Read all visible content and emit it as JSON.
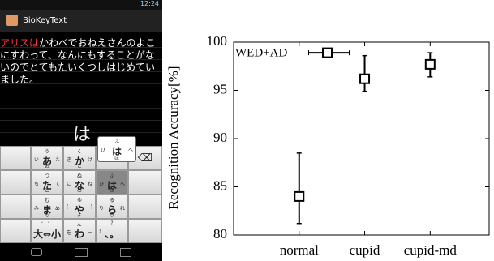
{
  "screenshot": {
    "time": "12:24",
    "app_title": "BioKeyText",
    "text_lines": [
      [
        "アリスは",
        "かわべでおねえさんのよこ"
      ],
      [
        "にすわって、なんにもすることがな"
      ],
      [
        "いのでとてもたいくつしはじめてい"
      ],
      [
        "ました。"
      ]
    ],
    "composing": "は",
    "popup": {
      "main": "は",
      "left": "ひ",
      "right": "へ",
      "up": "ふ",
      "down": "ほ"
    },
    "keys": [
      {
        "main": "あ",
        "left": "い",
        "right": "え",
        "up": "う",
        "down": "お"
      },
      {
        "main": "か",
        "left": "き",
        "right": "け",
        "up": "く",
        "down": "こ"
      },
      {
        "main": "た",
        "left": "ち",
        "right": "て",
        "up": "つ",
        "down": "と"
      },
      {
        "main": "な",
        "left": "に",
        "right": "ね",
        "up": "ぬ",
        "down": "の"
      },
      {
        "main": "は",
        "left": "ひ",
        "right": "へ",
        "up": "ふ",
        "down": "ほ"
      },
      {
        "main": "ま",
        "left": "み",
        "right": "め",
        "up": "む",
        "down": "も"
      },
      {
        "main": "や",
        "left": "(",
        "right": ")",
        "up": "ゆ",
        "down": "よ"
      },
      {
        "main": "ら",
        "left": "り",
        "right": "れ",
        "up": "る",
        "down": "ろ"
      },
      {
        "main": "大⇔小",
        "up": "゛ ゜"
      },
      {
        "main": "わ",
        "left": "を",
        "right": "ー",
        "up": "ん"
      },
      {
        "main": "、。",
        "up": "?",
        "left": "!"
      }
    ],
    "delete": "⌫"
  },
  "chart_data": {
    "type": "errorbar",
    "y_label": "Recognition Accuracy[%]",
    "categories": [
      "normal",
      "cupid",
      "cupid-md"
    ],
    "series": [
      {
        "values": [
          84,
          96.2,
          97.7
        ],
        "lower": [
          81.2,
          94.9,
          96.4
        ],
        "upper": [
          88.5,
          98.6,
          98.9
        ],
        "color": "#000000"
      }
    ],
    "annotation": {
      "text": "WED+AD",
      "value": 98.9
    },
    "ylim": [
      80,
      100
    ],
    "yticks": [
      80,
      85,
      90,
      95,
      100
    ],
    "grid": false
  }
}
